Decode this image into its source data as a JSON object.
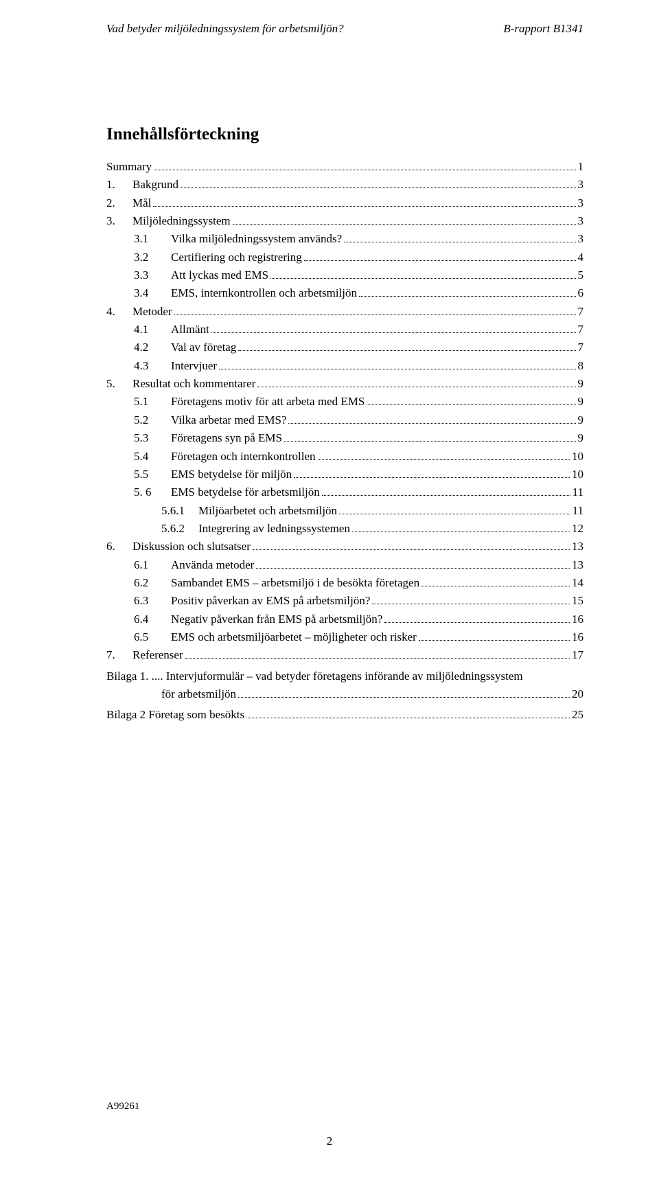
{
  "header": {
    "left": "Vad betyder miljöledningssystem för arbetsmiljön?",
    "right": "B-rapport B1341"
  },
  "toc_title": "Innehållsförteckning",
  "entries": [
    {
      "indent": 0,
      "num": "",
      "label": "Summary",
      "page": "1"
    },
    {
      "indent": 0,
      "num": "1.",
      "label": "Bakgrund",
      "page": "3"
    },
    {
      "indent": 0,
      "num": "2.",
      "label": "Mål",
      "page": "3"
    },
    {
      "indent": 0,
      "num": "3.",
      "label": "Miljöledningssystem",
      "page": "3"
    },
    {
      "indent": 1,
      "num": "3.1",
      "label": "Vilka miljöledningssystem används?",
      "page": "3"
    },
    {
      "indent": 1,
      "num": "3.2",
      "label": "Certifiering och registrering",
      "page": "4"
    },
    {
      "indent": 1,
      "num": "3.3",
      "label": "Att lyckas med EMS",
      "page": "5"
    },
    {
      "indent": 1,
      "num": "3.4",
      "label": "EMS, internkontrollen och arbetsmiljön",
      "page": "6"
    },
    {
      "indent": 0,
      "num": "4.",
      "label": "Metoder",
      "page": "7"
    },
    {
      "indent": 1,
      "num": "4.1",
      "label": "Allmänt",
      "page": "7"
    },
    {
      "indent": 1,
      "num": "4.2",
      "label": "Val av företag",
      "page": "7"
    },
    {
      "indent": 1,
      "num": "4.3",
      "label": "Intervjuer",
      "page": "8"
    },
    {
      "indent": 0,
      "num": "5.",
      "label": "Resultat och kommentarer",
      "page": "9"
    },
    {
      "indent": 1,
      "num": "5.1",
      "label": "Företagens motiv för att arbeta med EMS",
      "page": "9"
    },
    {
      "indent": 1,
      "num": "5.2",
      "label": "Vilka arbetar med EMS?",
      "page": "9"
    },
    {
      "indent": 1,
      "num": "5.3",
      "label": "Företagens syn på EMS",
      "page": "9"
    },
    {
      "indent": 1,
      "num": "5.4",
      "label": "Företagen och internkontrollen",
      "page": "10"
    },
    {
      "indent": 1,
      "num": "5.5",
      "label": "EMS betydelse för miljön",
      "page": "10"
    },
    {
      "indent": 1,
      "num": "5. 6",
      "label": "EMS betydelse för arbetsmiljön",
      "page": "11"
    },
    {
      "indent": 2,
      "num": "5.6.1",
      "label": "Miljöarbetet och arbetsmiljön",
      "page": "11"
    },
    {
      "indent": 2,
      "num": "5.6.2",
      "label": "Integrering av ledningssystemen",
      "page": "12"
    },
    {
      "indent": 0,
      "num": "6.",
      "label": "Diskussion och slutsatser",
      "page": "13"
    },
    {
      "indent": 1,
      "num": "6.1",
      "label": "Använda metoder",
      "page": "13"
    },
    {
      "indent": 1,
      "num": "6.2",
      "label": "Sambandet EMS – arbetsmiljö i de besökta företagen",
      "page": "14"
    },
    {
      "indent": 1,
      "num": "6.3",
      "label": "Positiv påverkan av EMS på arbetsmiljön?",
      "page": "15"
    },
    {
      "indent": 1,
      "num": "6.4",
      "label": "Negativ påverkan från EMS på arbetsmiljön?",
      "page": "16"
    },
    {
      "indent": 1,
      "num": "6.5",
      "label": "EMS och arbetsmiljöarbetet – möjligheter och risker",
      "page": "16"
    },
    {
      "indent": 0,
      "num": "7.",
      "label": "Referenser",
      "page": "17"
    }
  ],
  "bilaga1": {
    "line1": "Bilaga 1. .... Intervjuformulär – vad betyder företagens införande av miljöledningssystem",
    "line2": "för arbetsmiljön",
    "page": "20"
  },
  "bilaga2": {
    "label": "Bilaga 2 Företag som besökts",
    "page": "25"
  },
  "footer": {
    "id": "A99261",
    "pagenum": "2"
  }
}
